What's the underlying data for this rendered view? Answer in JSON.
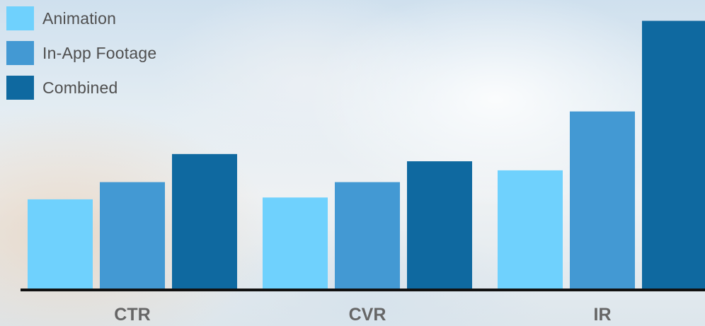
{
  "chart_data": {
    "type": "bar",
    "categories": [
      "CTR",
      "CVR",
      "IR"
    ],
    "series": [
      {
        "name": "Animation",
        "color": "#6fd1fd",
        "values": [
          1.0,
          1.02,
          1.32
        ]
      },
      {
        "name": "In-App Footage",
        "color": "#4399d3",
        "values": [
          1.19,
          1.19,
          1.97
        ]
      },
      {
        "name": "Combined",
        "color": "#0f69a0",
        "values": [
          1.5,
          1.42,
          2.97
        ]
      }
    ],
    "title": "",
    "xlabel": "",
    "ylabel": "",
    "ylim": [
      0,
      3.2
    ],
    "legend": "top-left",
    "grid": false,
    "axis_color": "#111111",
    "tick_label_color": "#666666"
  }
}
